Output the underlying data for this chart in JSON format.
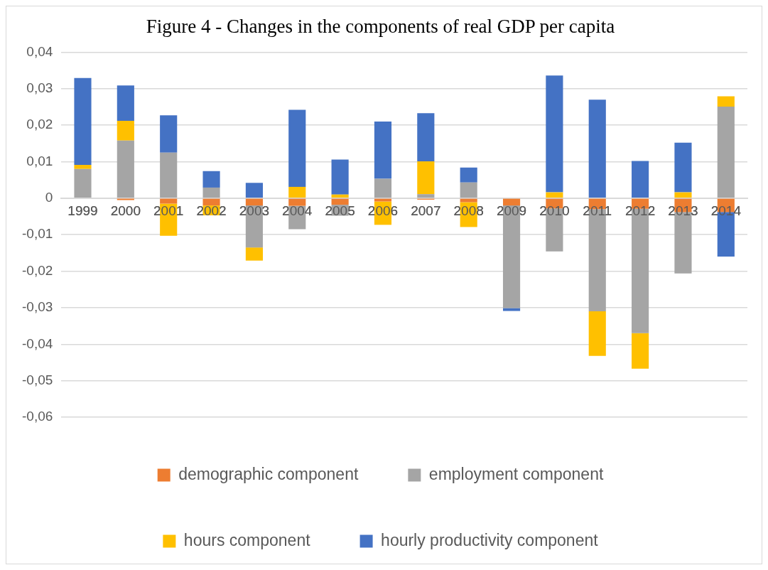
{
  "chart_data": {
    "type": "bar",
    "title": "Figure 4 - Changes in the components of real GDP per capita",
    "categories": [
      "1999",
      "2000",
      "2001",
      "2002",
      "2003",
      "2004",
      "2005",
      "2006",
      "2007",
      "2008",
      "2009",
      "2010",
      "2011",
      "2012",
      "2013",
      "2014"
    ],
    "stacked": true,
    "series": [
      {
        "name": "demographic component",
        "color": "#ed7d31",
        "values": [
          0,
          -0.0005,
          -0.0015,
          -0.002,
          -0.002,
          -0.0021,
          -0.0018,
          -0.0009,
          -0.0004,
          -0.0011,
          -0.002,
          -0.0028,
          -0.003,
          -0.0029,
          -0.0038,
          -0.0038
        ]
      },
      {
        "name": "employment component",
        "color": "#a5a5a5",
        "values": [
          0.008,
          0.0158,
          0.0125,
          0.0029,
          -0.0115,
          -0.0064,
          -0.003,
          0.0053,
          0.0011,
          0.0043,
          -0.0281,
          -0.0118,
          -0.028,
          -0.0341,
          -0.0168,
          0.0251
        ]
      },
      {
        "name": "hours component",
        "color": "#ffc000",
        "values": [
          0.0011,
          0.0054,
          -0.0088,
          -0.0027,
          -0.0036,
          0.0031,
          0.001,
          -0.0064,
          0.009,
          -0.0068,
          0,
          0.0016,
          -0.0122,
          -0.0097,
          0.0016,
          0.0028
        ]
      },
      {
        "name": "hourly productivity component",
        "color": "#4472c4",
        "values": [
          0.0238,
          0.0097,
          0.0102,
          0.0045,
          0.0042,
          0.0211,
          0.0096,
          0.0157,
          0.0132,
          0.0041,
          -0.0008,
          0.032,
          0.027,
          0.0102,
          0.0136,
          -0.0122
        ]
      }
    ],
    "ylim": [
      -0.06,
      0.04
    ],
    "yticks": [
      {
        "value": -0.06,
        "label": "-0,06"
      },
      {
        "value": -0.05,
        "label": "-0,05"
      },
      {
        "value": -0.04,
        "label": "-0,04"
      },
      {
        "value": -0.03,
        "label": "-0,03"
      },
      {
        "value": -0.02,
        "label": "-0,02"
      },
      {
        "value": -0.01,
        "label": "-0,01"
      },
      {
        "value": 0,
        "label": "0"
      },
      {
        "value": 0.01,
        "label": "0,01"
      },
      {
        "value": 0.02,
        "label": "0,02"
      },
      {
        "value": 0.03,
        "label": "0,03"
      },
      {
        "value": 0.04,
        "label": "0,04"
      }
    ],
    "grid": "y",
    "legend": "bottom"
  }
}
